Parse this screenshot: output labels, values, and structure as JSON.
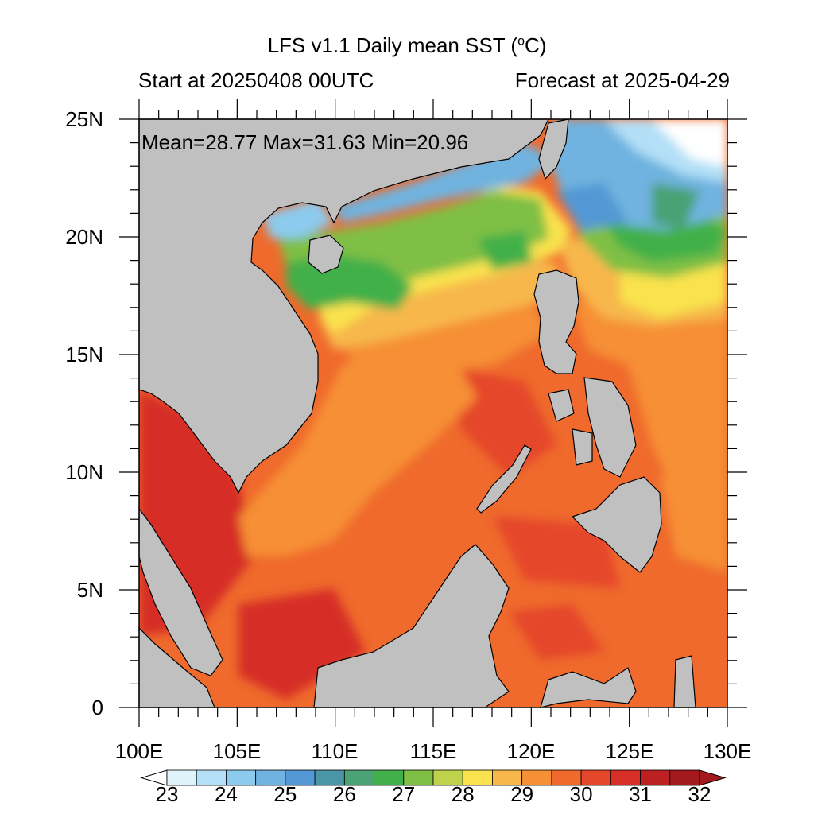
{
  "title": "LFS v1.1 Daily mean SST (",
  "title_unit_sup": "o",
  "title_unit_end": "C)",
  "subtitle_left": "Start at 20250408 00UTC",
  "subtitle_right": "Forecast at 2025-04-29",
  "stats": "Mean=28.77  Max=31.63  Min=20.96",
  "chart_data": {
    "type": "heatmap",
    "title": "LFS v1.1 Daily mean SST (oC)",
    "x_range": [
      100,
      130
    ],
    "y_range": [
      0,
      25
    ],
    "x_ticks": [
      "100E",
      "105E",
      "110E",
      "115E",
      "120E",
      "125E",
      "130E"
    ],
    "y_ticks": [
      "0",
      "5N",
      "10N",
      "15N",
      "20N",
      "25N"
    ],
    "stats": {
      "mean": 28.77,
      "max": 31.63,
      "min": 20.96
    },
    "colorbar": {
      "labels": [
        "23",
        "24",
        "25",
        "26",
        "27",
        "28",
        "29",
        "30",
        "31",
        "32"
      ],
      "levels": [
        22.5,
        23,
        23.5,
        24,
        24.5,
        25,
        25.5,
        26,
        26.5,
        27,
        27.5,
        28,
        28.5,
        29,
        29.5,
        30,
        30.5,
        31,
        31.5,
        32
      ],
      "colors": [
        "#ffffff",
        "#dff3fb",
        "#b3e0f7",
        "#8ccbee",
        "#6fb3e0",
        "#5398d4",
        "#4b96a6",
        "#4aa275",
        "#42b04a",
        "#7fbf45",
        "#bfd24b",
        "#f9e24e",
        "#f7b74b",
        "#f68f35",
        "#ef6a2c",
        "#e5472a",
        "#d62f27",
        "#bd2023",
        "#a3191d",
        "#a3191d"
      ]
    },
    "land_color": "#c0c0c0"
  }
}
